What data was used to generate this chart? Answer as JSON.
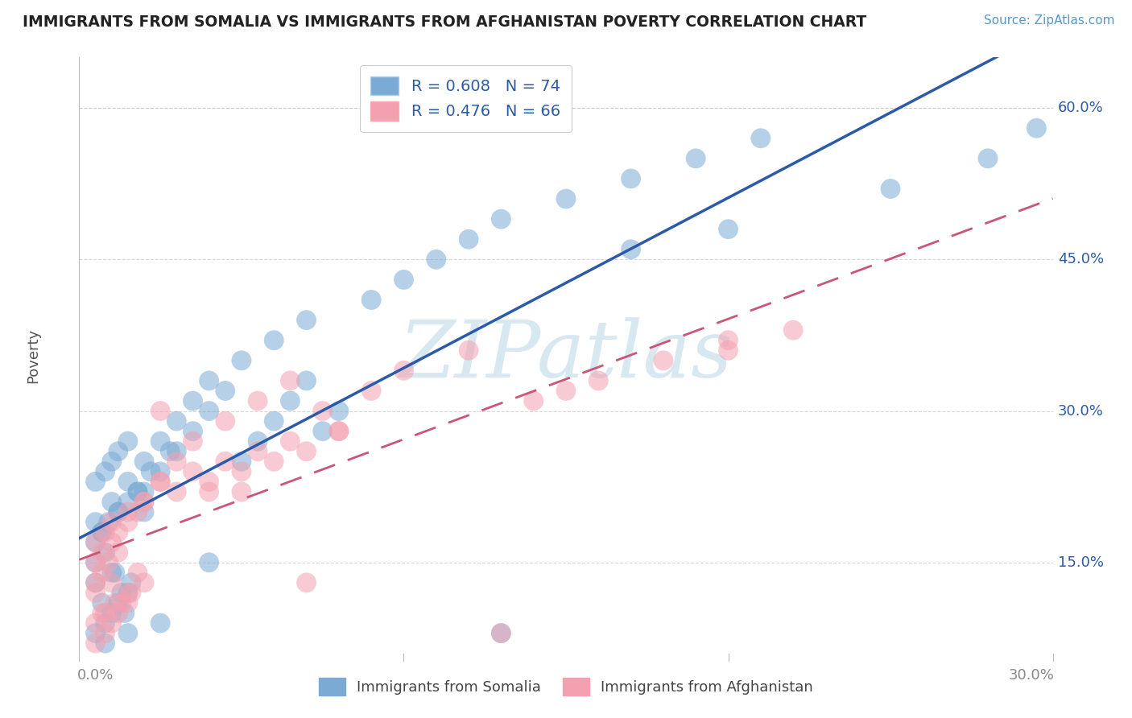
{
  "title": "IMMIGRANTS FROM SOMALIA VS IMMIGRANTS FROM AFGHANISTAN POVERTY CORRELATION CHART",
  "source": "Source: ZipAtlas.com",
  "ylabel": "Poverty",
  "ytick_vals": [
    0.15,
    0.3,
    0.45,
    0.6
  ],
  "ytick_labels": [
    "15.0%",
    "30.0%",
    "45.0%",
    "60.0%"
  ],
  "xtick_vals": [
    0.0,
    0.1,
    0.2,
    0.3
  ],
  "xtick_labels": [
    "0.0%",
    "",
    "",
    "30.0%"
  ],
  "xlim": [
    0.0,
    0.3
  ],
  "ylim": [
    0.06,
    0.65
  ],
  "R_somalia": 0.608,
  "N_somalia": 74,
  "R_afghanistan": 0.476,
  "N_afghanistan": 66,
  "color_somalia": "#7BAAD4",
  "color_afghanistan": "#F4A0B0",
  "line_color_somalia": "#2B5BA8",
  "line_color_afghanistan": "#CC5577",
  "background_color": "#FFFFFF",
  "grid_color": "#CCCCCC",
  "title_color": "#222222",
  "source_color": "#5599CC",
  "watermark_color": "#D8E8F0",
  "legend_label_somalia": "Immigrants from Somalia",
  "legend_label_afghanistan": "Immigrants from Afghanistan",
  "somalia_x": [
    0.005,
    0.008,
    0.01,
    0.012,
    0.015,
    0.005,
    0.007,
    0.01,
    0.013,
    0.016,
    0.005,
    0.008,
    0.011,
    0.014,
    0.005,
    0.007,
    0.009,
    0.012,
    0.015,
    0.018,
    0.02,
    0.005,
    0.008,
    0.01,
    0.012,
    0.015,
    0.02,
    0.025,
    0.03,
    0.035,
    0.04,
    0.045,
    0.05,
    0.055,
    0.06,
    0.065,
    0.07,
    0.075,
    0.08,
    0.005,
    0.01,
    0.015,
    0.02,
    0.025,
    0.03,
    0.035,
    0.04,
    0.05,
    0.06,
    0.07,
    0.09,
    0.1,
    0.11,
    0.12,
    0.13,
    0.15,
    0.17,
    0.19,
    0.21,
    0.007,
    0.012,
    0.018,
    0.022,
    0.028,
    0.25,
    0.28,
    0.295,
    0.17,
    0.2,
    0.008,
    0.015,
    0.025,
    0.04,
    0.13
  ],
  "somalia_y": [
    0.08,
    0.09,
    0.1,
    0.11,
    0.12,
    0.13,
    0.11,
    0.14,
    0.12,
    0.13,
    0.15,
    0.16,
    0.14,
    0.1,
    0.17,
    0.18,
    0.19,
    0.2,
    0.21,
    0.22,
    0.2,
    0.23,
    0.24,
    0.25,
    0.26,
    0.27,
    0.22,
    0.24,
    0.26,
    0.28,
    0.3,
    0.32,
    0.25,
    0.27,
    0.29,
    0.31,
    0.33,
    0.28,
    0.3,
    0.19,
    0.21,
    0.23,
    0.25,
    0.27,
    0.29,
    0.31,
    0.33,
    0.35,
    0.37,
    0.39,
    0.41,
    0.43,
    0.45,
    0.47,
    0.49,
    0.51,
    0.53,
    0.55,
    0.57,
    0.18,
    0.2,
    0.22,
    0.24,
    0.26,
    0.52,
    0.55,
    0.58,
    0.46,
    0.48,
    0.07,
    0.08,
    0.09,
    0.15,
    0.08
  ],
  "afghanistan_x": [
    0.005,
    0.008,
    0.01,
    0.012,
    0.015,
    0.005,
    0.007,
    0.01,
    0.013,
    0.016,
    0.005,
    0.008,
    0.011,
    0.005,
    0.007,
    0.009,
    0.012,
    0.015,
    0.018,
    0.02,
    0.005,
    0.008,
    0.01,
    0.015,
    0.02,
    0.025,
    0.03,
    0.035,
    0.04,
    0.045,
    0.05,
    0.055,
    0.06,
    0.065,
    0.07,
    0.08,
    0.005,
    0.01,
    0.015,
    0.02,
    0.025,
    0.03,
    0.035,
    0.045,
    0.055,
    0.065,
    0.075,
    0.09,
    0.1,
    0.12,
    0.14,
    0.16,
    0.18,
    0.2,
    0.007,
    0.012,
    0.018,
    0.04,
    0.07,
    0.13,
    0.025,
    0.05,
    0.08,
    0.15,
    0.2,
    0.22
  ],
  "afghanistan_y": [
    0.07,
    0.08,
    0.09,
    0.1,
    0.11,
    0.12,
    0.1,
    0.13,
    0.11,
    0.12,
    0.09,
    0.1,
    0.11,
    0.13,
    0.14,
    0.15,
    0.16,
    0.12,
    0.14,
    0.13,
    0.17,
    0.18,
    0.19,
    0.2,
    0.21,
    0.23,
    0.22,
    0.24,
    0.23,
    0.25,
    0.24,
    0.26,
    0.25,
    0.27,
    0.26,
    0.28,
    0.15,
    0.17,
    0.19,
    0.21,
    0.23,
    0.25,
    0.27,
    0.29,
    0.31,
    0.33,
    0.3,
    0.32,
    0.34,
    0.36,
    0.31,
    0.33,
    0.35,
    0.37,
    0.16,
    0.18,
    0.2,
    0.22,
    0.13,
    0.08,
    0.3,
    0.22,
    0.28,
    0.32,
    0.36,
    0.38
  ]
}
